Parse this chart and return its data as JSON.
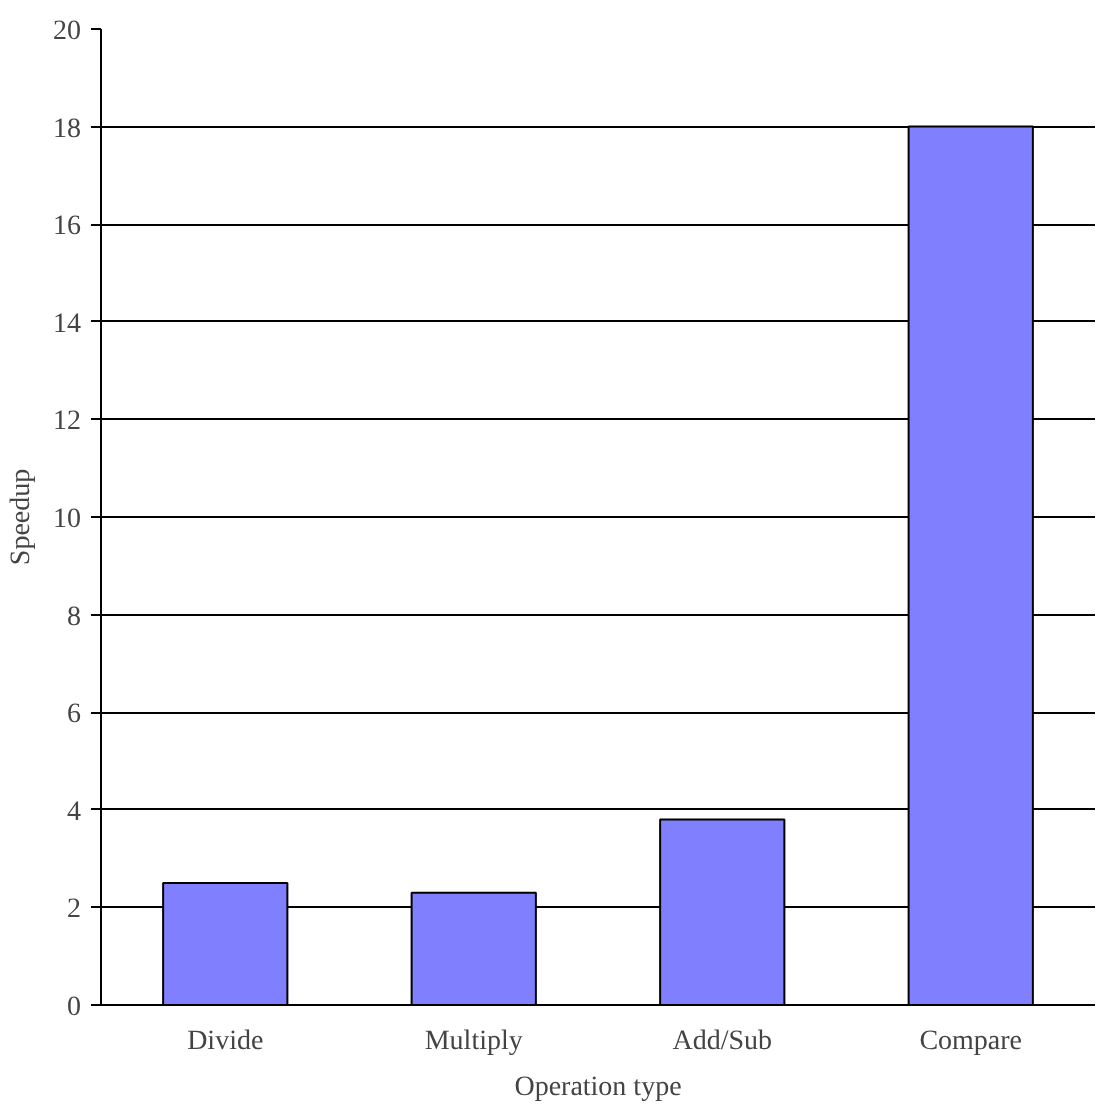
{
  "chart_data": {
    "type": "bar",
    "xlabel": "Operation type",
    "ylabel": "Speedup",
    "categories": [
      "Divide",
      "Multiply",
      "Add/Sub",
      "Compare"
    ],
    "values": [
      2.5,
      2.3,
      3.8,
      18
    ],
    "color": "#8080ff",
    "ylim": [
      0,
      20
    ],
    "yticks": [
      0,
      2,
      4,
      6,
      8,
      10,
      12,
      14,
      16,
      18,
      20
    ],
    "grid": "y"
  }
}
